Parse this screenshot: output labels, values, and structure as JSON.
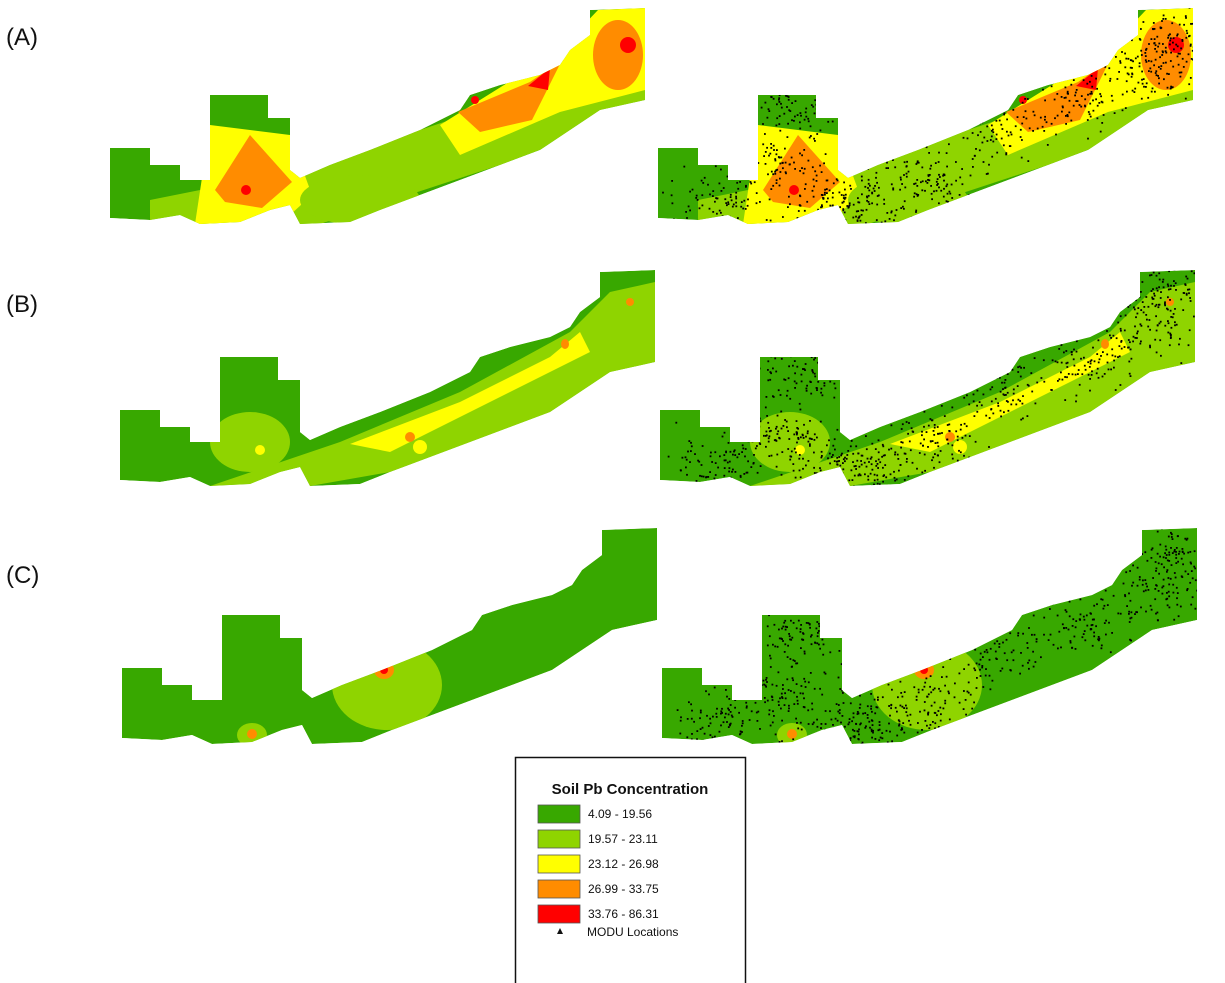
{
  "panels": [
    {
      "label": "(A)"
    },
    {
      "label": "(B)"
    },
    {
      "label": "(C)"
    }
  ],
  "legend": {
    "title": "Soil Pb Concentration",
    "classes": [
      {
        "label": "4.09 - 19.56",
        "color": "#38a800"
      },
      {
        "label": "19.57 - 23.11",
        "color": "#8fd400"
      },
      {
        "label": "23.12 - 26.98",
        "color": "#ffff00"
      },
      {
        "label": "26.99 - 33.75",
        "color": "#ff8c00"
      },
      {
        "label": "33.76 - 86.31",
        "color": "#ff0000"
      }
    ],
    "points": {
      "label": "MODU Locations"
    }
  }
}
